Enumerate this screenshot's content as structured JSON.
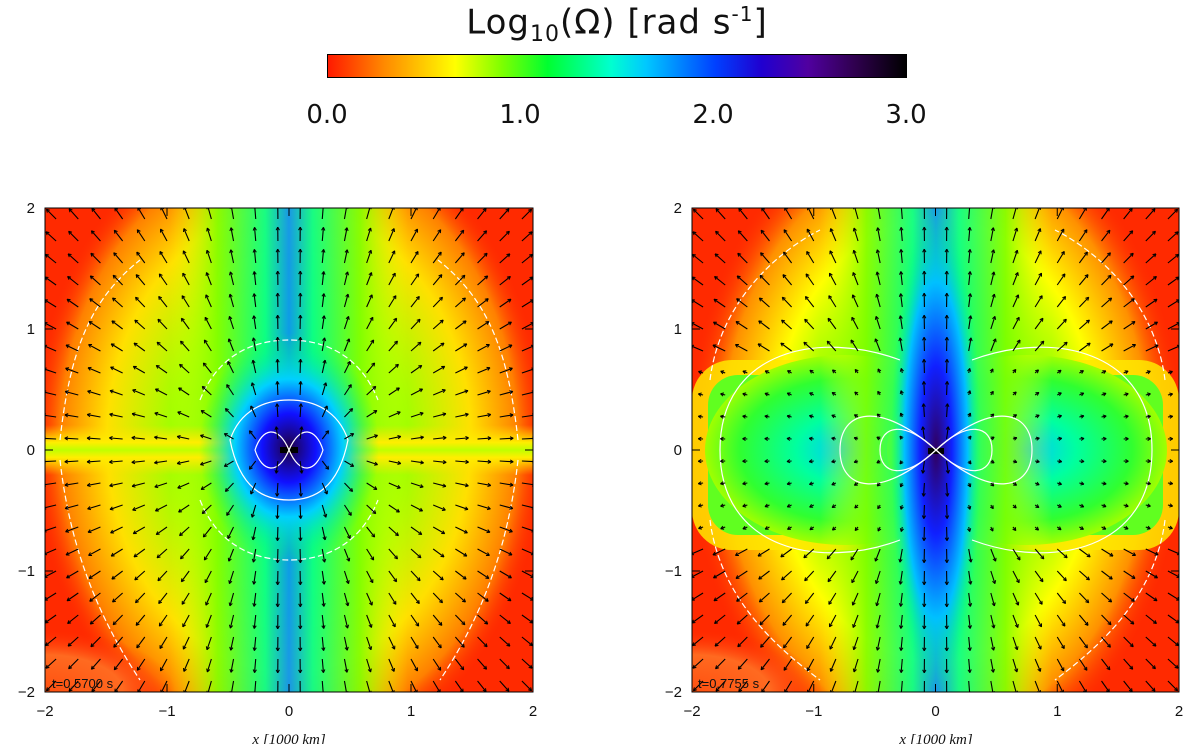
{
  "chart_data": [
    {
      "type": "heatmap",
      "title": "",
      "colorbar": {
        "title_main": "Log",
        "title_sub": "10",
        "title_rest": "(Ω) [rad s",
        "title_sup": "-1",
        "title_end": "]",
        "range": [
          0.0,
          3.0
        ],
        "tick_labels": [
          "0.0",
          "1.0",
          "2.0",
          "3.0"
        ],
        "tick_values": [
          0.0,
          1.0,
          2.0,
          3.0
        ]
      },
      "panels": [
        {
          "annotation": "t=0.5700 s",
          "xlim": [
            -2,
            2
          ],
          "ylim": [
            -2,
            2
          ],
          "xticks": [
            -2,
            -1,
            0,
            1,
            2
          ],
          "yticks": [
            -2,
            -1,
            0,
            1,
            2
          ],
          "xtick_labels": [
            "−2",
            "−1",
            "0",
            "1",
            "2"
          ],
          "ytick_labels": [
            "−2",
            "−1",
            "0",
            "1",
            "2"
          ],
          "xlabel": "x [1000 km]",
          "feature": "equatorial-jet"
        },
        {
          "annotation": "t=0.7755 s",
          "xlim": [
            -2,
            2
          ],
          "ylim": [
            -2,
            2
          ],
          "xticks": [
            -2,
            -1,
            0,
            1,
            2
          ],
          "yticks": [
            -2,
            -1,
            0,
            1,
            2
          ],
          "xtick_labels": [
            "−2",
            "−1",
            "0",
            "1",
            "2"
          ],
          "ytick_labels": [
            "−2",
            "−1",
            "0",
            "1",
            "2"
          ],
          "xlabel": "x [1000 km]",
          "feature": "equatorial-lobes"
        }
      ]
    }
  ]
}
